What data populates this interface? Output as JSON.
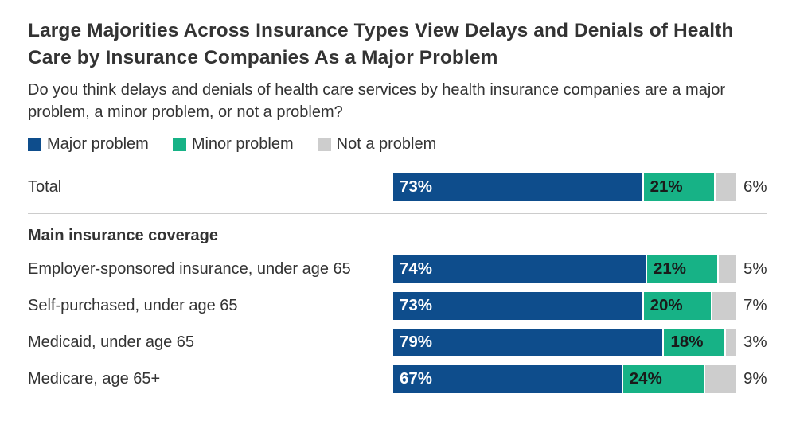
{
  "chart_data": {
    "type": "bar",
    "variant": "horizontal-stacked",
    "title": "Large Majorities Across Insurance Types View Delays and Denials of Health Care by Insurance Companies As a Major Problem",
    "subtitle": "Do you think delays and denials of health care services by health insurance companies are a major problem, a minor problem, or not a problem?",
    "legend_position": "top",
    "xlim": [
      0,
      100
    ],
    "unit": "%",
    "legend": [
      {
        "label": "Major problem",
        "color": "#0e4d8c"
      },
      {
        "label": "Minor problem",
        "color": "#17b286"
      },
      {
        "label": "Not a problem",
        "color": "#cdcdcd"
      }
    ],
    "section_header": "Main insurance coverage",
    "rows": [
      {
        "label": "Total",
        "group": "total",
        "values": [
          73,
          21,
          6
        ]
      },
      {
        "label": "Employer-sponsored insurance, under age 65",
        "group": "main-insurance-coverage",
        "values": [
          74,
          21,
          5
        ]
      },
      {
        "label": "Self-purchased, under age 65",
        "group": "main-insurance-coverage",
        "values": [
          73,
          20,
          7
        ]
      },
      {
        "label": "Medicaid, under age 65",
        "group": "main-insurance-coverage",
        "values": [
          79,
          18,
          3
        ]
      },
      {
        "label": "Medicare, age 65+",
        "group": "main-insurance-coverage",
        "values": [
          67,
          24,
          9
        ]
      }
    ],
    "colors": {
      "text": "#333333",
      "inside_label_on_major": "#ffffff",
      "inside_label_on_minor": "#1a1a1a",
      "divider": "#cccccc",
      "background": "#ffffff"
    }
  }
}
